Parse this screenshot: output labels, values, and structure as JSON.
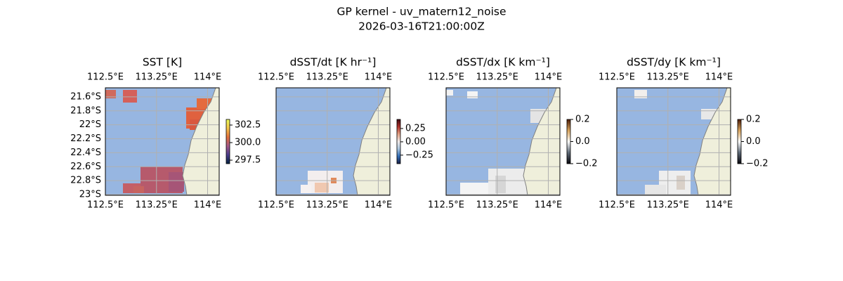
{
  "suptitle": "GP kernel - uv_matern12_noise",
  "subtitle": "2026-03-16T21:00:00Z",
  "chart_data": [
    {
      "type": "map",
      "title": "SST [K]",
      "xlim": [
        112.5,
        114.17
      ],
      "ylim": [
        -23.01,
        -21.47
      ],
      "xticks": [
        {
          "value": 112.5,
          "label": "112.5°E"
        },
        {
          "value": 113.25,
          "label": "113.25°E"
        },
        {
          "value": 114,
          "label": "114°E"
        }
      ],
      "yticks": [
        {
          "value": -21.6,
          "label": "21.6°S"
        },
        {
          "value": -21.8,
          "label": "21.8°S"
        },
        {
          "value": -22,
          "label": "22°S"
        },
        {
          "value": -22.2,
          "label": "22.2°S"
        },
        {
          "value": -22.4,
          "label": "22.4°S"
        },
        {
          "value": -22.6,
          "label": "22.6°S"
        },
        {
          "value": -22.8,
          "label": "22.8°S"
        },
        {
          "value": -23,
          "label": "23°S"
        }
      ],
      "clim": [
        297,
        303.3
      ],
      "cticks": [
        302.5,
        {
          "value": 300,
          "label": "300.0"
        },
        297.5
      ],
      "colormap": [
        "#04233e",
        "#4b3d8e",
        "#a65a8a",
        "#e4713d",
        "#f5c54a",
        "#e8fa5b"
      ],
      "grid": true
    },
    {
      "type": "map",
      "title": "dSST/dt [K hr⁻¹]",
      "xlim": [
        112.5,
        114.17
      ],
      "ylim": [
        -23.01,
        -21.47
      ],
      "xticks": [
        {
          "value": 112.5,
          "label": "112.5°E"
        },
        {
          "value": 113.25,
          "label": "113.25°E"
        },
        {
          "value": 114,
          "label": "114°E"
        }
      ],
      "clim": [
        -0.41,
        0.42
      ],
      "cticks": [
        0.25,
        {
          "value": 0,
          "label": "0.00"
        },
        {
          "value": -0.25,
          "label": "−0.25"
        }
      ],
      "colormap": [
        "#181c43",
        "#2f6cb7",
        "#a9c4de",
        "#f1ecec",
        "#e3a385",
        "#b2312a",
        "#3c0912"
      ],
      "grid": true
    },
    {
      "type": "map",
      "title": "dSST/dx [K km⁻¹]",
      "xlim": [
        112.5,
        114.17
      ],
      "ylim": [
        -23.01,
        -21.47
      ],
      "xticks": [
        {
          "value": 112.5,
          "label": "112.5°E"
        },
        {
          "value": 113.25,
          "label": "113.25°E"
        },
        {
          "value": 114,
          "label": "114°E"
        }
      ],
      "clim": [
        -0.2,
        0.2
      ],
      "cticks": [
        0.2,
        {
          "value": 0,
          "label": "0.0"
        },
        {
          "value": -0.2,
          "label": "−0.2"
        }
      ],
      "colormap": [
        "#05040a",
        "#5e6a78",
        "#ffffff",
        "#d9a45c",
        "#4a1a06"
      ],
      "grid": true
    },
    {
      "type": "map",
      "title": "dSST/dy [K km⁻¹]",
      "xlim": [
        112.5,
        114.17
      ],
      "ylim": [
        -23.01,
        -21.47
      ],
      "xticks": [
        {
          "value": 112.5,
          "label": "112.5°E"
        },
        {
          "value": 113.25,
          "label": "113.25°E"
        },
        {
          "value": 114,
          "label": "114°E"
        }
      ],
      "clim": [
        -0.2,
        0.2
      ],
      "cticks": [
        0.2,
        {
          "value": 0,
          "label": "0.0"
        },
        {
          "value": -0.2,
          "label": "−0.2"
        }
      ],
      "colormap": [
        "#05040a",
        "#5e6a78",
        "#ffffff",
        "#d9a45c",
        "#4a1a06"
      ],
      "grid": true
    }
  ]
}
